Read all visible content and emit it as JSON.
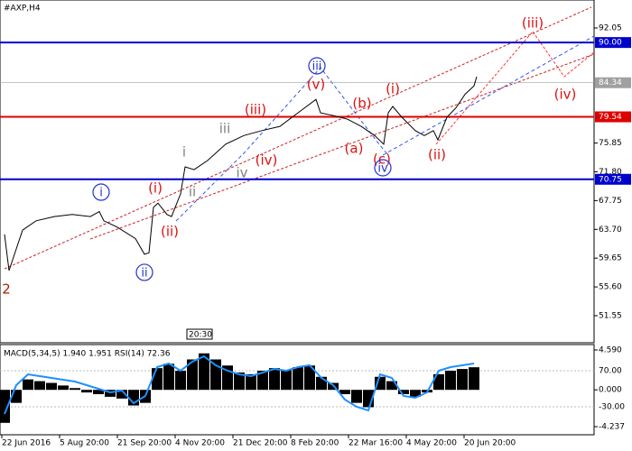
{
  "chart_data": {
    "type": "line",
    "title": "#AXP,H4",
    "xlim": [
      0,
      658
    ],
    "ylim": [
      51.55,
      92.05
    ],
    "yticks": [
      {
        "value": 92.05,
        "label": "92.05"
      },
      {
        "value": 75.85,
        "label": "75.85"
      },
      {
        "value": 71.8,
        "label": "71.80"
      },
      {
        "value": 67.75,
        "label": "67.75"
      },
      {
        "value": 63.7,
        "label": "63.70"
      },
      {
        "value": 59.65,
        "label": "59.65"
      },
      {
        "value": 55.6,
        "label": "55.60"
      },
      {
        "value": 51.55,
        "label": "51.55"
      }
    ],
    "xticks": [
      {
        "value": 2,
        "label": "22 Jun 2016"
      },
      {
        "value": 66,
        "label": "5 Aug 20:00"
      },
      {
        "value": 130,
        "label": "21 Sep 20:00"
      },
      {
        "value": 194,
        "label": "4 Nov 20:00"
      },
      {
        "value": 258,
        "label": "21 Dec 20:00"
      },
      {
        "value": 322,
        "label": "8 Feb 20:00"
      },
      {
        "value": 386,
        "label": "22 Mar 16:00"
      },
      {
        "value": 450,
        "label": "4 May 20:00"
      },
      {
        "value": 514,
        "label": "20 Jun 20:00"
      }
    ],
    "series": [
      {
        "name": "AXP",
        "color": "#000000",
        "x": [
          5,
          10,
          15,
          25,
          40,
          60,
          80,
          100,
          110,
          115,
          130,
          150,
          160,
          165,
          170,
          175,
          185,
          190,
          200,
          205,
          215,
          230,
          250,
          270,
          290,
          310,
          330,
          350,
          355,
          370,
          385,
          400,
          415,
          425,
          430,
          435,
          445,
          460,
          470,
          480,
          485,
          495,
          505,
          515,
          525,
          528
        ],
        "values": [
          63.0,
          57.9,
          59.8,
          63.6,
          64.9,
          65.5,
          65.8,
          65.5,
          66.2,
          64.9,
          64.0,
          62.4,
          60.2,
          60.4,
          66.8,
          67.4,
          65.8,
          65.5,
          68.7,
          72.5,
          72.1,
          73.4,
          75.7,
          76.9,
          77.6,
          78.2,
          80.1,
          82.0,
          80.1,
          79.7,
          79.2,
          78.2,
          76.9,
          75.7,
          80.1,
          81.0,
          79.5,
          77.6,
          76.9,
          77.6,
          76.3,
          79.5,
          80.8,
          82.7,
          83.9,
          85.2
        ]
      }
    ],
    "levels": [
      {
        "value": 90.0,
        "label": "90.00",
        "color": "#0000cc"
      },
      {
        "value": 84.34,
        "label": "84.34",
        "color": "#a0a0a0"
      },
      {
        "value": 79.54,
        "label": "79.54",
        "color": "#dd0000"
      },
      {
        "value": 70.75,
        "label": "70.75",
        "color": "#0000cc"
      }
    ],
    "annotations": [
      {
        "text": "2",
        "x": 7,
        "y": 55.36,
        "color": "#aa2200",
        "circled": false
      },
      {
        "text": "i",
        "x": 112,
        "y": 68.94,
        "color": "#2233cc",
        "circled": true
      },
      {
        "text": "ii",
        "x": 160,
        "y": 57.65,
        "color": "#2233cc",
        "circled": true
      },
      {
        "text": "(i)",
        "x": 172,
        "y": 69.58,
        "color": "#dd1111",
        "circled": false
      },
      {
        "text": "(ii)",
        "x": 188,
        "y": 63.49,
        "color": "#dd1111",
        "circled": false
      },
      {
        "text": "i",
        "x": 204,
        "y": 74.66,
        "color": "#808080",
        "circled": false
      },
      {
        "text": "ii",
        "x": 213,
        "y": 69.07,
        "color": "#808080",
        "circled": false
      },
      {
        "text": "iii",
        "x": 249,
        "y": 77.96,
        "color": "#808080",
        "circled": false
      },
      {
        "text": "iv",
        "x": 268,
        "y": 71.74,
        "color": "#808080",
        "circled": false
      },
      {
        "text": "(iii)",
        "x": 283,
        "y": 80.62,
        "color": "#dd1111",
        "circled": false
      },
      {
        "text": "(iv)",
        "x": 295,
        "y": 73.52,
        "color": "#dd1111",
        "circled": false
      },
      {
        "text": "(v)",
        "x": 350,
        "y": 84.18,
        "color": "#dd1111",
        "circled": false
      },
      {
        "text": "iii",
        "x": 351,
        "y": 86.72,
        "color": "#2233cc",
        "circled": true
      },
      {
        "text": "(b)",
        "x": 401,
        "y": 81.51,
        "color": "#dd1111",
        "circled": false
      },
      {
        "text": "(a)",
        "x": 392,
        "y": 75.17,
        "color": "#dd1111",
        "circled": false
      },
      {
        "text": "(i)",
        "x": 435,
        "y": 83.54,
        "color": "#dd1111",
        "circled": false
      },
      {
        "text": "(c)",
        "x": 423,
        "y": 73.64,
        "color": "#dd1111",
        "circled": false
      },
      {
        "text": "iv",
        "x": 424,
        "y": 72.37,
        "color": "#2233cc",
        "circled": true
      },
      {
        "text": "(ii)",
        "x": 484,
        "y": 74.28,
        "color": "#dd1111",
        "circled": false
      },
      {
        "text": "(iii)",
        "x": 590,
        "y": 92.81,
        "color": "#dd1111",
        "circled": false
      },
      {
        "text": "(iv)",
        "x": 626,
        "y": 82.78,
        "color": "#dd1111",
        "circled": false
      }
    ],
    "time_box": "20:30",
    "indicator": {
      "label": "MACD(5,34,5) 1.940 1.951 RSI(14) 72.36",
      "macd_lim": [
        -4.237,
        4.59
      ],
      "macd_ticks": [
        {
          "value": 4.59,
          "label": "4.590"
        },
        {
          "value": 0,
          "label": "0.000"
        },
        {
          "value": -4.237,
          "label": "-4.237"
        }
      ],
      "rsi_lim": [
        -107.5,
        142.5
      ],
      "rsi_ticks": [
        {
          "value": 70,
          "label": "70.00"
        },
        {
          "value": -30,
          "label": "-30.00"
        }
      ],
      "x": [
        5,
        18,
        31,
        44,
        57,
        70,
        83,
        96,
        109,
        122,
        135,
        148,
        161,
        174,
        187,
        200,
        213,
        226,
        239,
        252,
        265,
        278,
        291,
        304,
        317,
        330,
        343,
        356,
        369,
        382,
        395,
        408,
        421,
        434,
        447,
        460,
        473,
        486,
        499,
        512,
        525
      ],
      "macd": [
        -3.8,
        -1.5,
        1.2,
        1.0,
        0.8,
        0.5,
        0.2,
        -0.3,
        -0.5,
        -0.8,
        -1.0,
        -1.8,
        -1.5,
        2.5,
        3.0,
        2.2,
        3.5,
        4.2,
        3.5,
        2.8,
        2.0,
        1.8,
        2.2,
        2.5,
        2.3,
        2.6,
        2.8,
        1.5,
        0.8,
        -0.5,
        -1.5,
        -2.0,
        1.5,
        1.0,
        -0.5,
        -0.8,
        -0.3,
        1.8,
        2.2,
        2.4,
        2.6
      ],
      "rsi": [
        -50,
        30,
        60,
        55,
        50,
        45,
        40,
        30,
        20,
        10,
        15,
        -20,
        0,
        80,
        90,
        70,
        95,
        110,
        85,
        70,
        60,
        55,
        65,
        75,
        70,
        80,
        85,
        50,
        30,
        -10,
        -30,
        -40,
        60,
        50,
        0,
        -5,
        10,
        70,
        80,
        85,
        90
      ],
      "rsi_color": "#1e90ff"
    }
  }
}
